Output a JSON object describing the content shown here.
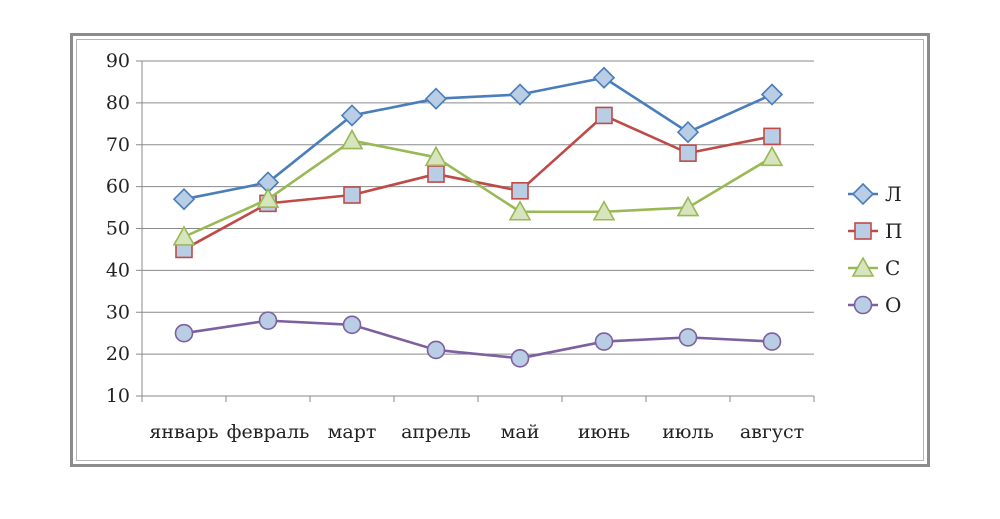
{
  "chart_data": {
    "type": "line",
    "categories": [
      "январь",
      "февраль",
      "март",
      "апрель",
      "май",
      "июнь",
      "июль",
      "август"
    ],
    "ylim": [
      10,
      90
    ],
    "yticks": [
      10,
      20,
      30,
      40,
      50,
      60,
      70,
      80,
      90
    ],
    "grid": true,
    "legend_position": "right",
    "series": [
      {
        "name": "Л",
        "color": "#4a7ebb",
        "fill": "#b9cde5",
        "marker": "diamond",
        "values": [
          57,
          61,
          77,
          81,
          82,
          86,
          73,
          82
        ]
      },
      {
        "name": "П",
        "color": "#be4b48",
        "fill": "#b9cde5",
        "marker": "square",
        "values": [
          45,
          56,
          58,
          63,
          59,
          77,
          68,
          72
        ]
      },
      {
        "name": "С",
        "color": "#98b954",
        "fill": "#d7e4bd",
        "marker": "triangle",
        "values": [
          48,
          57,
          71,
          67,
          54,
          54,
          55,
          67
        ]
      },
      {
        "name": "О",
        "color": "#7d60a0",
        "fill": "#b9cde5",
        "marker": "circle",
        "values": [
          25,
          28,
          27,
          21,
          19,
          23,
          24,
          23
        ]
      }
    ]
  }
}
